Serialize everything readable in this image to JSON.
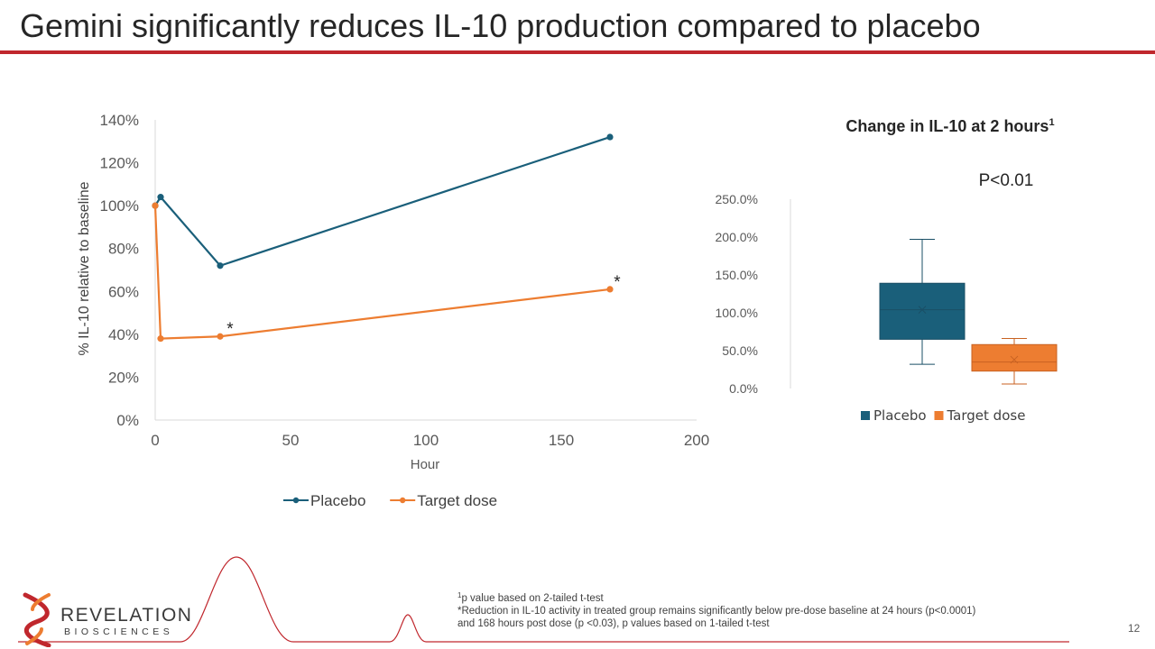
{
  "slide": {
    "title": "Gemini significantly reduces IL-10 production compared to placebo",
    "page_number": "12"
  },
  "logo": {
    "name": "REVELATION",
    "subtitle": "BIOSCIENCES"
  },
  "footnotes": {
    "fn1_marker": "1",
    "fn1_text": "p value based on 2-tailed t-test",
    "fn2_line1": "*Reduction in IL-10 activity in treated group remains significantly below pre-dose baseline at 24 hours (p<0.0001)",
    "fn2_line2": "and 168 hours post dose (p <0.03), p values based on 1-tailed t-test"
  },
  "colors": {
    "placebo": "#1a5f7a",
    "target": "#ed7d31",
    "accent_red": "#c0272d"
  },
  "chart_data": [
    {
      "type": "line",
      "title": "",
      "xlabel": "Hour",
      "ylabel": "%  IL-10 relative to baseline",
      "xlim": [
        0,
        200
      ],
      "ylim": [
        0,
        140
      ],
      "x_ticks": [
        "0",
        "50",
        "100",
        "150",
        "200"
      ],
      "y_ticks": [
        "0%",
        "20%",
        "40%",
        "60%",
        "80%",
        "100%",
        "120%",
        "140%"
      ],
      "legend": "bottom",
      "series": [
        {
          "name": "Placebo",
          "x": [
            0,
            2,
            24,
            168
          ],
          "y": [
            100,
            104,
            72,
            132
          ]
        },
        {
          "name": "Target dose",
          "x": [
            0,
            2,
            24,
            168
          ],
          "y": [
            100,
            38,
            39,
            61
          ]
        }
      ],
      "annotations": [
        {
          "text": "*",
          "x": 27,
          "y": 39
        },
        {
          "text": "*",
          "x": 170,
          "y": 61
        }
      ]
    },
    {
      "type": "box",
      "title": "Change in IL-10 at 2 hours",
      "title_superscript": "1",
      "annotation": "P<0.01",
      "ylim": [
        0,
        250
      ],
      "y_ticks": [
        "0.0%",
        "50.0%",
        "100.0%",
        "150.0%",
        "200.0%",
        "250.0%"
      ],
      "legend": "bottom",
      "series": [
        {
          "name": "Placebo",
          "min": 32,
          "q1": 65,
          "median": 104,
          "q3": 139,
          "max": 197,
          "mean": 104
        },
        {
          "name": "Target dose",
          "min": 6,
          "q1": 23,
          "median": 35,
          "q3": 58,
          "max": 66,
          "mean": 38
        }
      ]
    }
  ]
}
